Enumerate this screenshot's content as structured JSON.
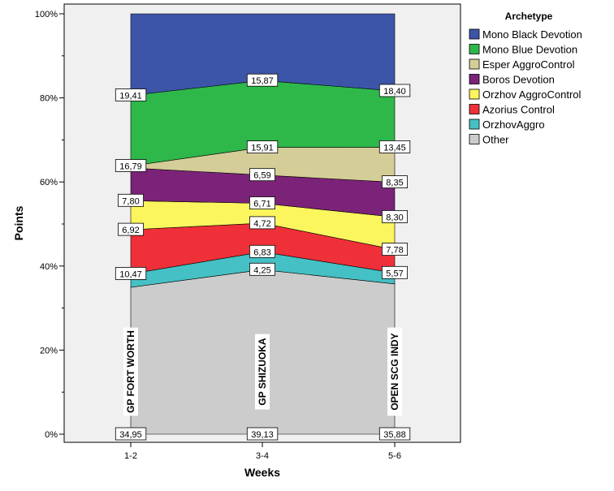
{
  "chart_data": {
    "type": "area",
    "stacking": "percent",
    "xlabel": "Weeks",
    "ylabel": "Points",
    "categories": [
      "1-2",
      "3-4",
      "5-6"
    ],
    "event_labels": [
      "GP FORT WORTH",
      "GP SHIZUOKA",
      "OPEN SCG INDY"
    ],
    "ylim": [
      0,
      100
    ],
    "yticks": [
      "0%",
      "20%",
      "40%",
      "60%",
      "80%",
      "100%"
    ],
    "legend": {
      "title": "Archetype",
      "position": "right"
    },
    "series": [
      {
        "name": "Other",
        "color": "#cccccc",
        "values": [
          34.95,
          39.13,
          35.88
        ],
        "labels": [
          "34,95",
          "39,13",
          "35,88"
        ]
      },
      {
        "name": "OrzhovAggro",
        "color": "#45c0c4",
        "values": [
          3.2,
          4.25,
          2.6
        ],
        "labels": [
          null,
          "4,25",
          null
        ]
      },
      {
        "name": "Azorius Control",
        "color": "#ef3038",
        "values": [
          10.47,
          6.83,
          5.57
        ],
        "labels": [
          "10,47",
          "6,83",
          "5,57"
        ]
      },
      {
        "name": "Orzhov AggroControl",
        "color": "#fbf55e",
        "values": [
          6.92,
          4.72,
          7.78
        ],
        "labels": [
          "6,92",
          "4,72",
          "7,78"
        ]
      },
      {
        "name": "Boros Devotion",
        "color": "#7b2378",
        "values": [
          7.8,
          6.71,
          8.3
        ],
        "labels": [
          "7,80",
          "6,71",
          "8,30"
        ]
      },
      {
        "name": "Esper AggroControl",
        "color": "#d4cd97",
        "values": [
          0.46,
          6.59,
          8.35
        ],
        "labels": [
          null,
          "6,59",
          "8,35"
        ]
      },
      {
        "name": "Mono Blue Devotion",
        "color": "#2eb84a",
        "values": [
          16.79,
          15.91,
          13.45
        ],
        "labels": [
          "16,79",
          "15,91",
          "13,45"
        ]
      },
      {
        "name": "Mono Black Devotion",
        "color": "#3d55a8",
        "values": [
          19.41,
          15.87,
          18.4
        ],
        "labels": [
          "19,41",
          "15,87",
          "18,40"
        ]
      }
    ],
    "legend_order": [
      "Mono Black Devotion",
      "Mono Blue Devotion",
      "Esper AggroControl",
      "Boros Devotion",
      "Orzhov AggroControl",
      "Azorius Control",
      "OrzhovAggro",
      "Other"
    ],
    "plot_background": "#f0f0f0",
    "grid": false
  }
}
